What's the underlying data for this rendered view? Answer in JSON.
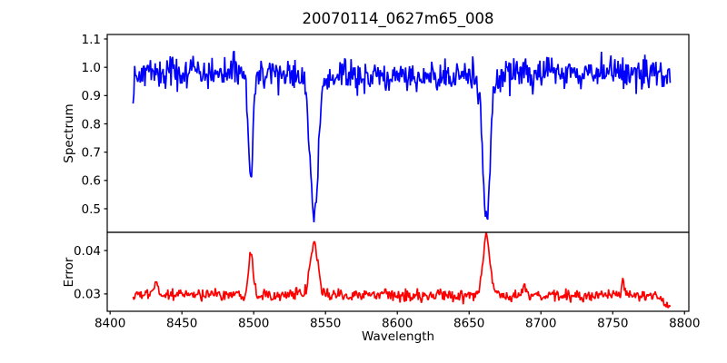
{
  "figure": {
    "title": "20070114_0627m65_008",
    "background": "#ffffff",
    "spine_color": "#000000"
  },
  "chart_data": [
    {
      "type": "line",
      "panel": "spectrum",
      "title": "20070114_0627m65_008",
      "ylabel": "Spectrum",
      "line_color": "#0000ff",
      "grid": false,
      "legend": null,
      "xlim": [
        8398,
        8803
      ],
      "ylim": [
        0.4166,
        1.116
      ],
      "x_range": [
        8416,
        8790
      ],
      "x_step": 0.55,
      "seed": 42,
      "continuum": 0.975,
      "noise_sigma": 0.028,
      "yticks": [
        {
          "value": 1.1,
          "label": "1.1"
        },
        {
          "value": 1.0,
          "label": "1.0"
        },
        {
          "value": 0.9,
          "label": "0.9"
        },
        {
          "value": 0.8,
          "label": "0.8"
        },
        {
          "value": 0.7,
          "label": "0.7"
        },
        {
          "value": 0.6,
          "label": "0.6"
        },
        {
          "value": 0.5,
          "label": "0.5"
        }
      ],
      "absorption_lines": [
        {
          "center": 8498.0,
          "depth": 0.35,
          "sigma": 1.5,
          "wing_depth": 0.04,
          "wing_sigma": 4.0,
          "min_flux": 0.59
        },
        {
          "center": 8542.1,
          "depth": 0.47,
          "sigma": 2.6,
          "wing_depth": 0.05,
          "wing_sigma": 6.0,
          "min_flux": 0.46
        },
        {
          "center": 8662.1,
          "depth": 0.47,
          "sigma": 2.4,
          "wing_depth": 0.05,
          "wing_sigma": 5.5,
          "min_flux": 0.46
        }
      ]
    },
    {
      "type": "line",
      "panel": "error",
      "ylabel": "Error",
      "xlabel": "Wavelength",
      "line_color": "#ff0000",
      "grid": false,
      "legend": null,
      "xlim": [
        8398,
        8803
      ],
      "ylim": [
        0.026,
        0.0442
      ],
      "x_range": [
        8416,
        8790
      ],
      "x_step": 0.55,
      "seed": 1234,
      "baseline": 0.0297,
      "noise_sigma": 0.0007,
      "yticks": [
        {
          "value": 0.04,
          "label": "0.04"
        },
        {
          "value": 0.03,
          "label": "0.03"
        }
      ],
      "xticks": [
        {
          "value": 8400,
          "label": "8400"
        },
        {
          "value": 8450,
          "label": "8450"
        },
        {
          "value": 8500,
          "label": "8500"
        },
        {
          "value": 8550,
          "label": "8550"
        },
        {
          "value": 8600,
          "label": "8600"
        },
        {
          "value": 8650,
          "label": "8650"
        },
        {
          "value": 8700,
          "label": "8700"
        },
        {
          "value": 8750,
          "label": "8750"
        },
        {
          "value": 8800,
          "label": "8800"
        }
      ],
      "peaks": [
        {
          "center": 8432.0,
          "amp": 0.0032,
          "sigma": 1.2
        },
        {
          "center": 8498.0,
          "amp": 0.01,
          "sigma": 1.6
        },
        {
          "center": 8542.1,
          "amp": 0.0118,
          "sigma": 2.6
        },
        {
          "center": 8662.1,
          "amp": 0.0136,
          "sigma": 2.5
        },
        {
          "center": 8688.0,
          "amp": 0.0028,
          "sigma": 1.0
        },
        {
          "center": 8757.0,
          "amp": 0.0026,
          "sigma": 1.0
        }
      ]
    }
  ]
}
